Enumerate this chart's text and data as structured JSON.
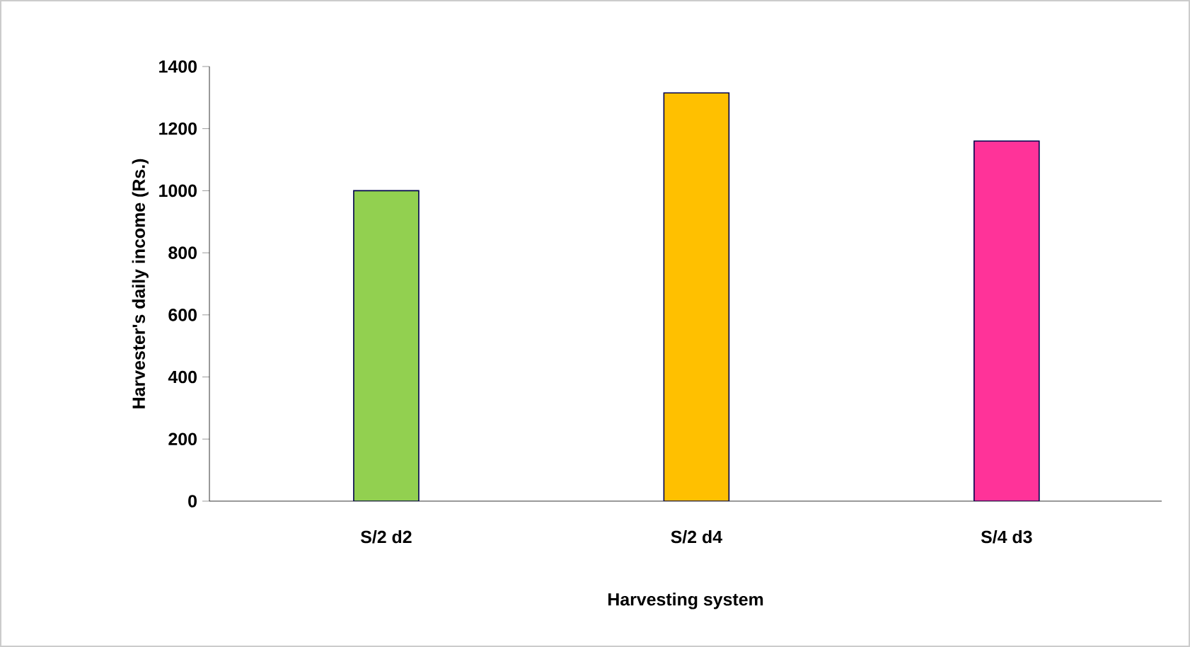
{
  "chart_data": {
    "type": "bar",
    "xlabel": "Harvesting system",
    "ylabel": "Harvester's daily income (Rs.)",
    "categories": [
      "S/2 d2",
      "S/2 d4",
      "S/4 d3"
    ],
    "values": [
      1000,
      1315,
      1160
    ],
    "colors": [
      "#92d050",
      "#ffc000",
      "#ff3399"
    ],
    "ylim": [
      0,
      1400
    ],
    "yticks": [
      0,
      200,
      400,
      600,
      800,
      1000,
      1200,
      1400
    ],
    "grid": false
  }
}
